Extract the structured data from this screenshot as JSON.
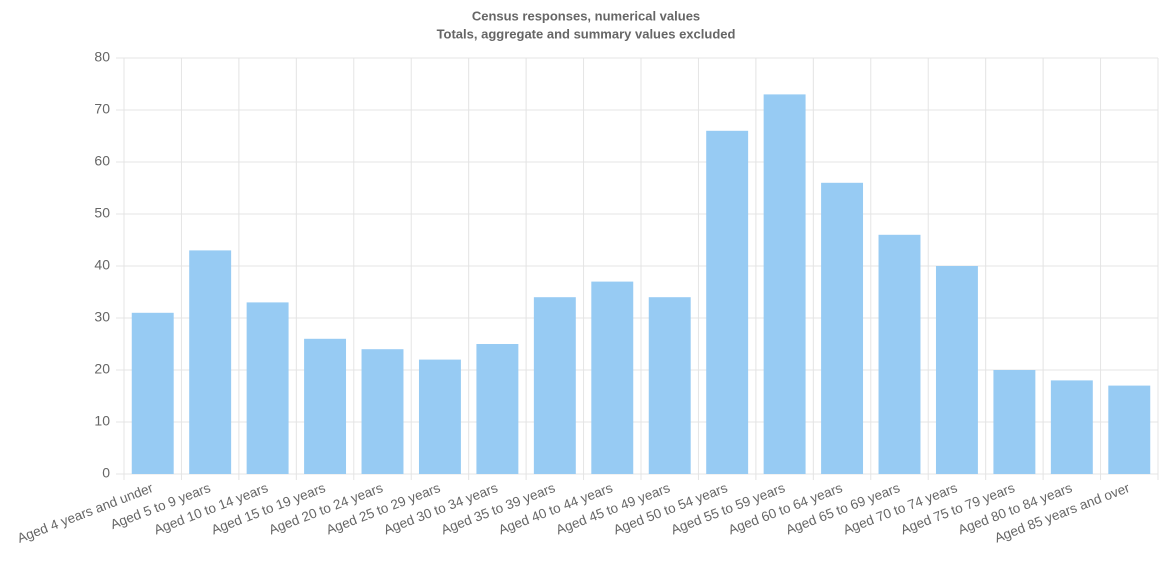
{
  "chart_data": {
    "type": "bar",
    "title": "Census responses, numerical values",
    "subtitle": "Totals, aggregate and summary values excluded",
    "categories": [
      "Aged 4 years and under",
      "Aged 5 to 9 years",
      "Aged 10 to 14 years",
      "Aged 15 to 19 years",
      "Aged 20 to 24 years",
      "Aged 25 to 29 years",
      "Aged 30 to 34 years",
      "Aged 35 to 39 years",
      "Aged 40 to 44 years",
      "Aged 45 to 49 years",
      "Aged 50 to 54 years",
      "Aged 55 to 59 years",
      "Aged 60 to 64 years",
      "Aged 65 to 69 years",
      "Aged 70 to 74 years",
      "Aged 75 to 79 years",
      "Aged 80 to 84 years",
      "Aged 85 years and over"
    ],
    "values": [
      31,
      43,
      33,
      26,
      24,
      22,
      25,
      34,
      37,
      34,
      66,
      73,
      56,
      46,
      40,
      20,
      18,
      17
    ],
    "color": "#97cbf3",
    "ylim": [
      0,
      80
    ],
    "yticks": [
      0,
      10,
      20,
      30,
      40,
      50,
      60,
      70,
      80
    ],
    "grid": true
  }
}
